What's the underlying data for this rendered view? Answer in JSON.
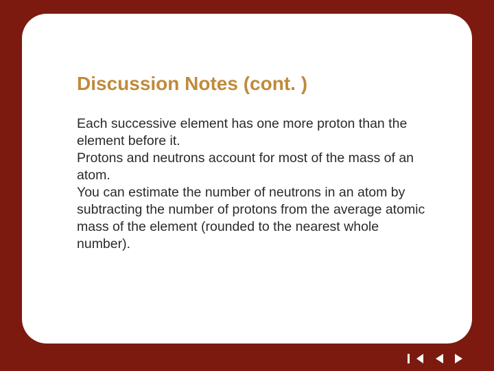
{
  "slide": {
    "title": "Discussion Notes (cont. )",
    "paragraphs": [
      "Each successive element has one more proton than the element before it.",
      "Protons and neutrons account for most of the mass of an atom.",
      "You can estimate the number of neutrons in an atom by subtracting the number of protons from the average atomic mass of the element (rounded to the nearest whole number)."
    ]
  },
  "style": {
    "frame_background": "#7c1a10",
    "outer_background": "#000000",
    "card_background": "#ffffff",
    "card_border_radius": 36,
    "title_color": "#c08a3a",
    "title_fontsize": 28,
    "title_fontweight": "bold",
    "body_color": "#2a2a2a",
    "body_fontsize": 19.5,
    "body_lineheight": 1.28,
    "nav_icon_color": "#ffffff"
  },
  "nav": {
    "first": "first-slide",
    "prev": "previous-slide",
    "next": "next-slide"
  }
}
